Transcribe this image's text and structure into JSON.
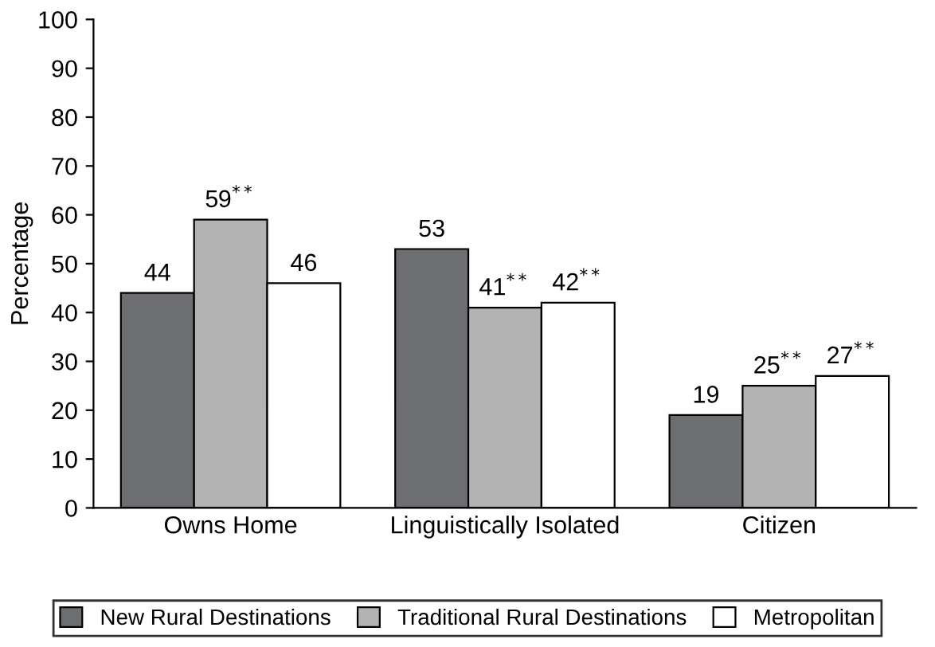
{
  "chart_data": {
    "type": "bar",
    "ylabel": "Percentage",
    "categories": [
      "Owns Home",
      "Linguistically Isolated",
      "Citizen"
    ],
    "series": [
      {
        "name": "New Rural Destinations",
        "color": "#6d6e71",
        "values": [
          44,
          53,
          19
        ],
        "value_labels": [
          "44",
          "53",
          "19"
        ]
      },
      {
        "name": "Traditional Rural Destinations",
        "color": "#b3b3b3",
        "values": [
          59,
          41,
          25
        ],
        "value_labels": [
          "59$^{**}$",
          "41$^{**}$",
          "25$^{**}$"
        ]
      },
      {
        "name": "Metropolitan",
        "color": "#ffffff",
        "values": [
          46,
          42,
          27
        ],
        "value_labels": [
          "46",
          "42$^{**}$",
          "27$^{**}$"
        ]
      }
    ],
    "ylim": [
      0,
      100
    ],
    "yticks": [
      0,
      10,
      20,
      30,
      40,
      50,
      60,
      70,
      80,
      90,
      100
    ],
    "grid": false,
    "legend": "bottom"
  }
}
